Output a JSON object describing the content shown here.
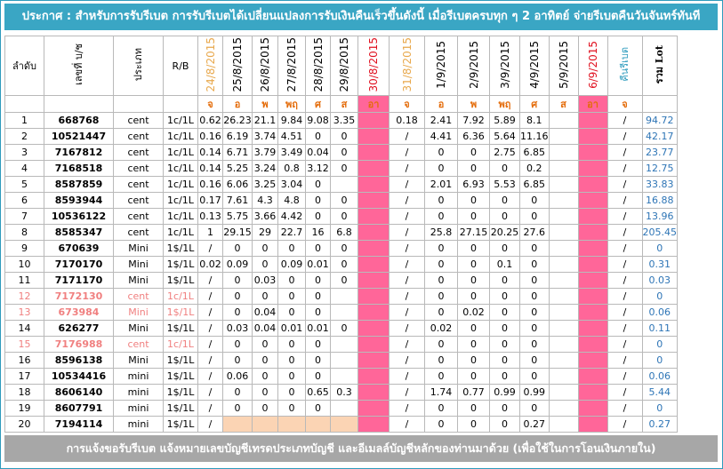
{
  "banner": "ประกาศ : สำหรับการรับรีเบต  การรับรีเบตได้เปลี่ยนแปลงการรับเงินคืนเร็วขึ้นดังนี้    เมื่อรีเบตครบทุก ๆ 2 อาทิตย์ จ่ายรีเบตคืนวันจันทร์ทันที",
  "footer": "การแจ้งขอรับรีเบต  แจ้งหมายเลขบัญชีเทรดประเภทบัญชี และอีเมลล์บัญชีหลักของท่านมาด้วย   (เพื่อใช้ในการโอนเงินภายใน)",
  "headers": {
    "order": "ลำดับ",
    "account": "เลขที่ บ/ช",
    "type": "ประเภท",
    "rb": "R/B",
    "dates": [
      "24/8/2015",
      "25/8/2015",
      "26/8/2015",
      "27/8/2015",
      "28/8/2015",
      "29/8/2015",
      "30/8/2015",
      "31/8/2015",
      "1/9/2015",
      "2/9/2015",
      "3/9/2015",
      "4/9/2015",
      "5/9/2015",
      "6/9/2015"
    ],
    "rebate": "คืนรีเบต",
    "total": "รวม Lot"
  },
  "day_abbr": [
    "จ",
    "อ",
    "พ",
    "พฤ",
    "ศ",
    "ส",
    "อา",
    "จ",
    "อ",
    "พ",
    "พฤ",
    "ศ",
    "ส",
    "อา",
    "จ"
  ],
  "colors": {
    "banner": "#3aa6c4",
    "footer": "#a7a7a7",
    "sunday": "#ff6699",
    "pending": "#fbd4b4",
    "lot": "#2e75b6"
  },
  "rows": [
    {
      "no": "1",
      "acc": "668768",
      "type": "cent",
      "rb": "1c/1L",
      "d": [
        "0.62",
        "26.23",
        "21.1",
        "9.84",
        "9.08",
        "3.35",
        "",
        "0.18",
        "2.41",
        "7.92",
        "5.89",
        "8.1",
        "",
        "",
        "/"
      ],
      "total": "94.72"
    },
    {
      "no": "2",
      "acc": "10521447",
      "type": "cent",
      "rb": "1c/1L",
      "d": [
        "0.16",
        "6.19",
        "3.74",
        "4.51",
        "0",
        "0",
        "",
        "/",
        "4.41",
        "6.36",
        "5.64",
        "11.16",
        "",
        "",
        "/"
      ],
      "total": "42.17"
    },
    {
      "no": "3",
      "acc": "7167812",
      "type": "cent",
      "rb": "1c/1L",
      "d": [
        "0.14",
        "6.71",
        "3.79",
        "3.49",
        "0.04",
        "0",
        "",
        "/",
        "0",
        "0",
        "2.75",
        "6.85",
        "",
        "",
        "/"
      ],
      "total": "23.77"
    },
    {
      "no": "4",
      "acc": "7168518",
      "type": "cent",
      "rb": "1c/1L",
      "d": [
        "0.14",
        "5.25",
        "3.24",
        "0.8",
        "3.12",
        "0",
        "",
        "/",
        "0",
        "0",
        "0",
        "0.2",
        "",
        "",
        "/"
      ],
      "total": "12.75"
    },
    {
      "no": "5",
      "acc": "8587859",
      "type": "cent",
      "rb": "1c/1L",
      "d": [
        "0.16",
        "6.06",
        "3.25",
        "3.04",
        "0",
        "",
        "",
        "/",
        "2.01",
        "6.93",
        "5.53",
        "6.85",
        "",
        "",
        "/"
      ],
      "total": "33.83"
    },
    {
      "no": "6",
      "acc": "8593944",
      "type": "cent",
      "rb": "1c/1L",
      "d": [
        "0.17",
        "7.61",
        "4.3",
        "4.8",
        "0",
        "0",
        "",
        "/",
        "0",
        "0",
        "0",
        "0",
        "",
        "",
        "/"
      ],
      "total": "16.88"
    },
    {
      "no": "7",
      "acc": "10536122",
      "type": "cent",
      "rb": "1c/1L",
      "d": [
        "0.13",
        "5.75",
        "3.66",
        "4.42",
        "0",
        "0",
        "",
        "/",
        "0",
        "0",
        "0",
        "0",
        "",
        "",
        "/"
      ],
      "total": "13.96"
    },
    {
      "no": "8",
      "acc": "8585347",
      "type": "cent",
      "rb": "1c/1L",
      "d": [
        "1",
        "29.15",
        "29",
        "22.7",
        "16",
        "6.8",
        "",
        "/",
        "25.8",
        "27.15",
        "20.25",
        "27.6",
        "",
        "",
        "/"
      ],
      "total": "205.45"
    },
    {
      "no": "9",
      "acc": "670639",
      "type": "Mini",
      "rb": "1$/1L",
      "d": [
        "/",
        "0",
        "0",
        "0",
        "0",
        "0",
        "",
        "/",
        "0",
        "0",
        "0",
        "0",
        "",
        "",
        "/"
      ],
      "total": "0"
    },
    {
      "no": "10",
      "acc": "7170170",
      "type": "Mini",
      "rb": "1$/1L",
      "d": [
        "0.02",
        "0.09",
        "0",
        "0.09",
        "0.01",
        "0",
        "",
        "/",
        "0",
        "0",
        "0.1",
        "0",
        "",
        "",
        "/"
      ],
      "total": "0.31"
    },
    {
      "no": "11",
      "acc": "7171170",
      "type": "Mini",
      "rb": "1$/1L",
      "d": [
        "/",
        "0",
        "0.03",
        "0",
        "0",
        "0",
        "",
        "/",
        "0",
        "0",
        "0",
        "0",
        "",
        "",
        "/"
      ],
      "total": "0.03"
    },
    {
      "no": "12",
      "acc": "7172130",
      "type": "cent",
      "rb": "1c/1L",
      "d": [
        "/",
        "0",
        "0",
        "0",
        "0",
        "",
        "",
        "/",
        "0",
        "0",
        "0",
        "0",
        "",
        "",
        "/"
      ],
      "total": "0",
      "ghost": true
    },
    {
      "no": "13",
      "acc": "673984",
      "type": "Mini",
      "rb": "1$/1L",
      "d": [
        "/",
        "0",
        "0.04",
        "0",
        "0",
        "",
        "",
        "/",
        "0",
        "0.02",
        "0",
        "0",
        "",
        "",
        "/"
      ],
      "total": "0.06",
      "ghost": true
    },
    {
      "no": "14",
      "acc": "626277",
      "type": "Mini",
      "rb": "1$/1L",
      "d": [
        "/",
        "0.03",
        "0.04",
        "0.01",
        "0.01",
        "0",
        "",
        "/",
        "0.02",
        "0",
        "0",
        "0",
        "",
        "",
        "/"
      ],
      "total": "0.11"
    },
    {
      "no": "15",
      "acc": "7176988",
      "type": "cent",
      "rb": "1c/1L",
      "d": [
        "/",
        "0",
        "0",
        "0",
        "0",
        "",
        "",
        "/",
        "0",
        "0",
        "0",
        "0",
        "",
        "",
        "/"
      ],
      "total": "0",
      "ghost": true
    },
    {
      "no": "16",
      "acc": "8596138",
      "type": "Mini",
      "rb": "1$/1L",
      "d": [
        "/",
        "0",
        "0",
        "0",
        "0",
        "",
        "",
        "/",
        "0",
        "0",
        "0",
        "0",
        "",
        "",
        "/"
      ],
      "total": "0"
    },
    {
      "no": "17",
      "acc": "10534416",
      "type": "mini",
      "rb": "1$/1L",
      "d": [
        "/",
        "0.06",
        "0",
        "0",
        "0",
        "",
        "",
        "/",
        "0",
        "0",
        "0",
        "0",
        "",
        "",
        "/"
      ],
      "total": "0.06"
    },
    {
      "no": "18",
      "acc": "8606140",
      "type": "mini",
      "rb": "1$/1L",
      "d": [
        "/",
        "0",
        "0",
        "0",
        "0.65",
        "0.3",
        "",
        "/",
        "1.74",
        "0.77",
        "0.99",
        "0.99",
        "",
        "",
        "/"
      ],
      "total": "5.44"
    },
    {
      "no": "19",
      "acc": "8607791",
      "type": "mini",
      "rb": "1$/1L",
      "d": [
        "/",
        "0",
        "0",
        "0",
        "0",
        "",
        "",
        "/",
        "0",
        "0",
        "0",
        "0",
        "",
        "",
        "/"
      ],
      "total": "0"
    },
    {
      "no": "20",
      "acc": "7194114",
      "type": "mini",
      "rb": "1$/1L",
      "d": [
        "/",
        "",
        "",
        "",
        "",
        "",
        "",
        "/",
        "0",
        "0",
        "0",
        "0.27",
        "",
        "",
        "/"
      ],
      "total": "0.27",
      "pending": true
    }
  ]
}
